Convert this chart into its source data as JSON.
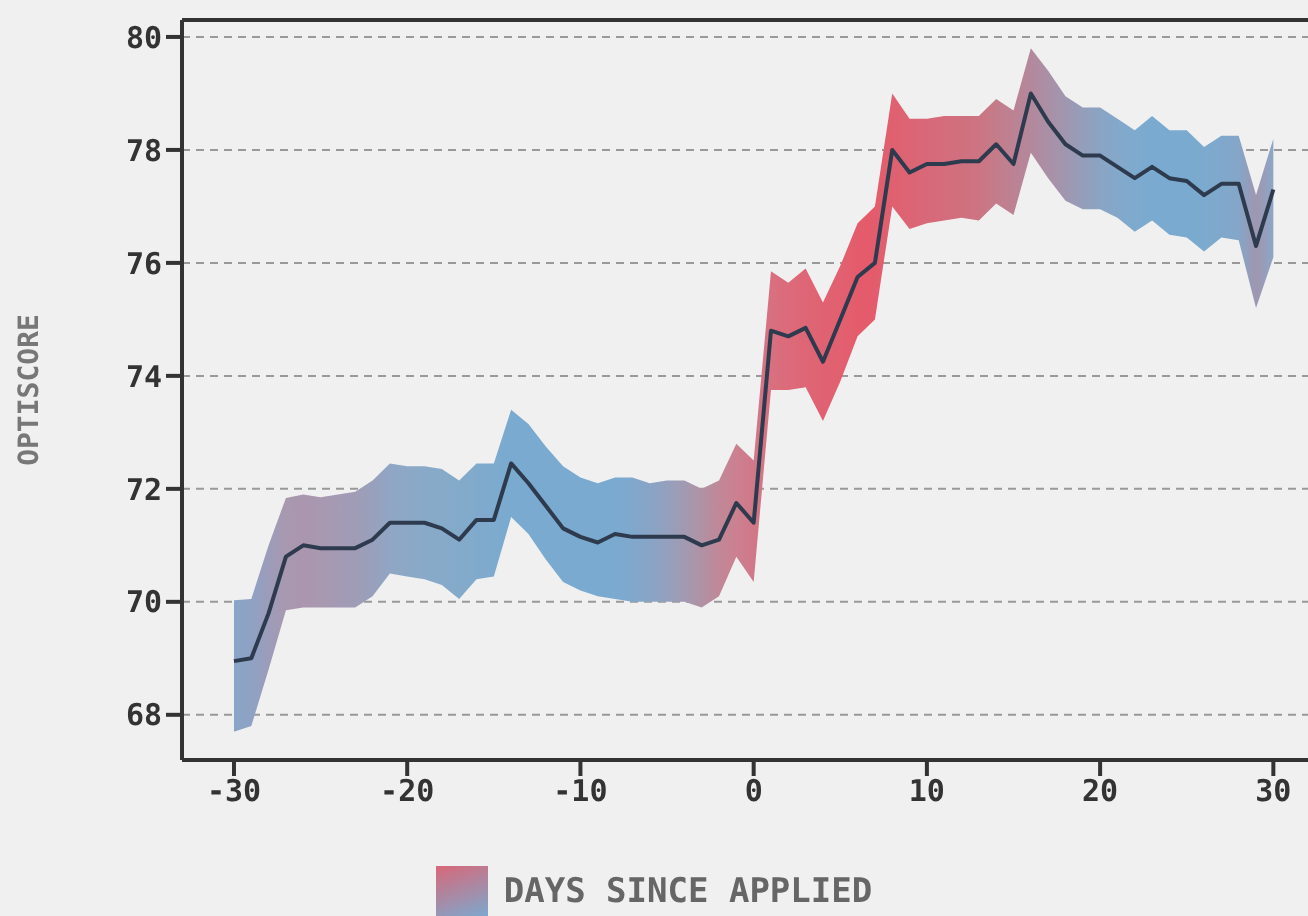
{
  "chart_data": {
    "type": "line",
    "xlabel": "DAYS SINCE APPLIED",
    "ylabel": "OPTISCORE",
    "x": [
      -30,
      -29,
      -28,
      -27,
      -26,
      -25,
      -24,
      -23,
      -22,
      -21,
      -20,
      -19,
      -18,
      -17,
      -16,
      -15,
      -14,
      -13,
      -12,
      -11,
      -10,
      -9,
      -8,
      -7,
      -6,
      -5,
      -4,
      -3,
      -2,
      -1,
      0,
      1,
      2,
      3,
      4,
      5,
      6,
      7,
      8,
      9,
      10,
      11,
      12,
      13,
      14,
      15,
      16,
      17,
      18,
      19,
      20,
      21,
      22,
      23,
      24,
      25,
      26,
      27,
      28,
      29,
      30
    ],
    "series": [
      {
        "color": "#2e3b4e",
        "values": [
          68.95,
          69.0,
          69.8,
          70.8,
          71.0,
          70.95,
          70.95,
          70.95,
          71.1,
          71.4,
          71.4,
          71.4,
          71.3,
          71.1,
          71.45,
          71.45,
          72.45,
          72.1,
          71.7,
          71.3,
          71.15,
          71.05,
          71.2,
          71.15,
          71.15,
          71.15,
          71.15,
          71.0,
          71.1,
          71.75,
          71.4,
          74.8,
          74.7,
          74.85,
          74.25,
          75.0,
          75.75,
          76.0,
          78.0,
          77.6,
          77.75,
          77.75,
          77.8,
          77.8,
          78.1,
          77.75,
          79.0,
          78.5,
          78.1,
          77.9,
          77.9,
          77.7,
          77.5,
          77.7,
          77.5,
          77.45,
          77.2,
          77.4,
          77.4,
          76.3,
          77.3
        ],
        "lower": [
          67.7,
          67.8,
          68.8,
          69.85,
          69.9,
          69.9,
          69.9,
          69.9,
          70.1,
          70.5,
          70.45,
          70.4,
          70.3,
          70.05,
          70.4,
          70.45,
          71.5,
          71.2,
          70.75,
          70.35,
          70.2,
          70.1,
          70.05,
          70.0,
          70.0,
          70.0,
          70.0,
          69.9,
          70.1,
          70.8,
          70.35,
          73.75,
          73.75,
          73.8,
          73.2,
          73.9,
          74.7,
          75.0,
          77.0,
          76.6,
          76.7,
          76.75,
          76.8,
          76.75,
          77.05,
          76.85,
          77.95,
          77.5,
          77.1,
          76.95,
          76.95,
          76.8,
          76.55,
          76.75,
          76.5,
          76.45,
          76.2,
          76.45,
          76.4,
          75.2,
          76.1
        ],
        "upper": [
          70.03,
          70.05,
          71.0,
          71.84,
          71.9,
          71.85,
          71.9,
          71.95,
          72.15,
          72.45,
          72.4,
          72.4,
          72.35,
          72.15,
          72.45,
          72.45,
          73.4,
          73.15,
          72.75,
          72.4,
          72.2,
          72.1,
          72.2,
          72.2,
          72.1,
          72.15,
          72.15,
          72.0,
          72.15,
          72.8,
          72.5,
          75.85,
          75.65,
          75.9,
          75.3,
          75.95,
          76.7,
          77.0,
          79.0,
          78.55,
          78.55,
          78.6,
          78.6,
          78.6,
          78.9,
          78.7,
          79.8,
          79.4,
          78.95,
          78.75,
          78.75,
          78.55,
          78.35,
          78.6,
          78.35,
          78.35,
          78.05,
          78.25,
          78.25,
          77.2,
          78.2
        ],
        "colors": [
          "#8aa5c8",
          "#8ea2c4",
          "#9c9cba",
          "#a898b0",
          "#aa96ae",
          "#a898b0",
          "#a49ab4",
          "#a09cb6",
          "#98a0bc",
          "#90a6c4",
          "#8ca8c6",
          "#88aac8",
          "#86aac8",
          "#84aaca",
          "#80aacc",
          "#7eaace",
          "#7aaad0",
          "#7aaad0",
          "#7aaad0",
          "#7aaad0",
          "#7aaad0",
          "#7aaad0",
          "#7aaad0",
          "#80a8cc",
          "#88a4c6",
          "#94a0be",
          "#a29ab2",
          "#b092a4",
          "#c08898",
          "#cc8090",
          "#d07888",
          "#d87080",
          "#dc6a7a",
          "#de6676",
          "#e06272",
          "#e26070",
          "#e45c6c",
          "#e45c6c",
          "#e06070",
          "#dc6474",
          "#d86878",
          "#d46c7c",
          "#d0707e",
          "#cc7482",
          "#c47c8a",
          "#bc8294",
          "#b4889c",
          "#aa90a6",
          "#a096b0",
          "#949eba",
          "#8aa4c4",
          "#84a8ca",
          "#7eaace",
          "#7aaad0",
          "#7aaad0",
          "#7aaad0",
          "#7caace",
          "#80a8cc",
          "#84a6c8",
          "#a096b0",
          "#8ca6c6"
        ]
      }
    ],
    "xlim": [
      -33,
      32
    ],
    "ylim": [
      67.2,
      80.3
    ],
    "xticks": [
      -30,
      -20,
      -10,
      0,
      10,
      20,
      30
    ],
    "yticks": [
      68,
      70,
      72,
      74,
      76,
      78,
      80
    ],
    "grid": "y",
    "line_style": "solid"
  }
}
